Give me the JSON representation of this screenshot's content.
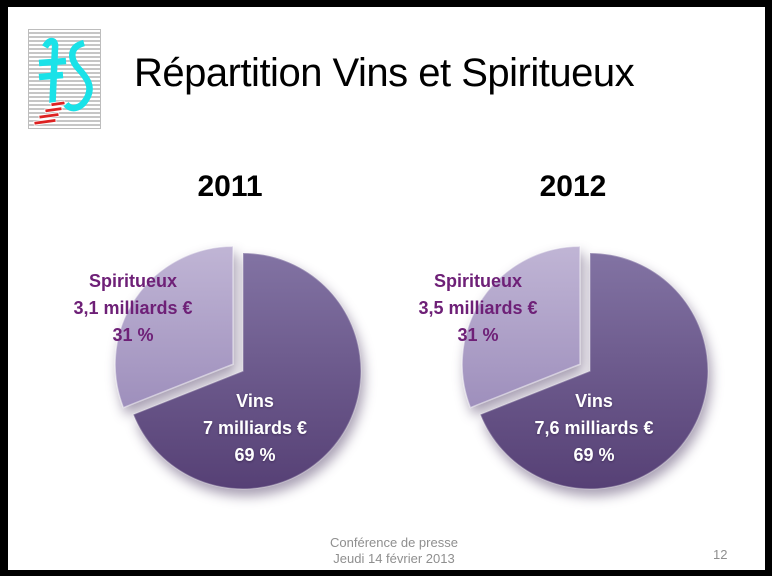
{
  "slide": {
    "title": "Répartition Vins et Spiritueux",
    "footer": {
      "line1": "Conférence de presse",
      "line2": "Jeudi 14 février 2013"
    },
    "page_number": "12"
  },
  "chart_data": [
    {
      "type": "pie",
      "title": "2011",
      "legend_position": "inside",
      "slices": [
        {
          "label": "Vins",
          "value_text": "7 milliards €",
          "value_billions_eur": 7.0,
          "percent": 69,
          "percent_text": "69 %",
          "color_key": "dark",
          "exploded": false
        },
        {
          "label": "Spiritueux",
          "value_text": "3,1 milliards €",
          "value_billions_eur": 3.1,
          "percent": 31,
          "percent_text": "31 %",
          "color_key": "light",
          "exploded": true
        }
      ]
    },
    {
      "type": "pie",
      "title": "2012",
      "legend_position": "inside",
      "slices": [
        {
          "label": "Vins",
          "value_text": "7,6 milliards €",
          "value_billions_eur": 7.6,
          "percent": 69,
          "percent_text": "69 %",
          "color_key": "dark",
          "exploded": false
        },
        {
          "label": "Spiritueux",
          "value_text": "3,5 milliards €",
          "value_billions_eur": 3.5,
          "percent": 31,
          "percent_text": "31 %",
          "color_key": "light",
          "exploded": true
        }
      ]
    }
  ],
  "colors": {
    "dark_top": "#8273a3",
    "dark_bottom": "#564075",
    "light_top": "#c0b5d5",
    "light_bottom": "#9e8fbc",
    "spiritueux_label": "#6e2077",
    "vins_label": "#ffffff",
    "footer_gray": "#8f8f8f",
    "logo_cyan": "#1ae2e8",
    "logo_red": "#dd2222"
  }
}
